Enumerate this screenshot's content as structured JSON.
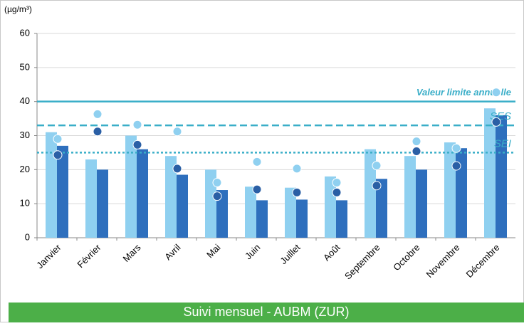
{
  "chart_data": {
    "type": "bar",
    "footer": "Suivi mensuel - AUBM (ZUR)",
    "y_axis_label": "(µg/m³)",
    "categories": [
      "Janvier",
      "Février",
      "Mars",
      "Avril",
      "Mai",
      "Juin",
      "Juillet",
      "Août",
      "Septembre",
      "Octobre",
      "Novembre",
      "Décembre"
    ],
    "series": [
      {
        "kind": "bar",
        "color": "#8fd0f0",
        "values": [
          31,
          23,
          30,
          24,
          20,
          15,
          14.7,
          18,
          26,
          24,
          28,
          38
        ]
      },
      {
        "kind": "bar",
        "color": "#2e6fbd",
        "values": [
          27,
          20,
          26,
          18.5,
          14,
          11,
          11.2,
          11,
          17.3,
          20,
          26.3,
          36
        ]
      },
      {
        "kind": "dot",
        "color": "#8fd0f0",
        "values": [
          29,
          36.3,
          33.2,
          31.2,
          16.2,
          22.3,
          20.3,
          16.2,
          21.2,
          28.3,
          26.3,
          42.7
        ]
      },
      {
        "kind": "dot",
        "color": "#2a5fa5",
        "values": [
          24.3,
          31.2,
          27.3,
          20.3,
          12.2,
          14.2,
          13.3,
          13.3,
          15.3,
          25.4,
          21.1,
          34
        ]
      }
    ],
    "reference_lines": [
      {
        "value": 40,
        "label": "Valeur limite annuelle",
        "style": "solid",
        "color": "#3aaec8"
      },
      {
        "value": 33,
        "label": "SES",
        "style": "dashed",
        "color": "#3aaec8"
      },
      {
        "value": 25,
        "label": "SEI",
        "style": "dotted",
        "color": "#3aaec8"
      }
    ],
    "ylim": [
      0,
      60
    ],
    "yticks": [
      0,
      10,
      20,
      30,
      40,
      50,
      60
    ],
    "grid": true
  }
}
